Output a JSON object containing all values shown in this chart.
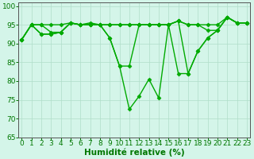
{
  "series": [
    {
      "x": [
        0,
        1,
        2,
        3,
        4,
        5,
        6,
        7,
        8,
        9,
        10,
        11,
        12,
        13,
        14,
        15,
        16,
        17,
        18,
        19,
        20,
        21,
        22,
        23
      ],
      "y": [
        91,
        95,
        95,
        95,
        95,
        95.5,
        95,
        95.5,
        95,
        95,
        95,
        95,
        95,
        95,
        95,
        95,
        96,
        95,
        95,
        95,
        95,
        97,
        95.5,
        95.5
      ]
    },
    {
      "x": [
        0,
        1,
        2,
        3,
        4,
        5,
        6,
        7,
        8,
        9,
        10,
        11,
        12,
        13,
        14,
        15,
        16,
        17,
        18,
        19,
        20,
        21,
        22,
        23
      ],
      "y": [
        91,
        95,
        95,
        93,
        93,
        95.5,
        95,
        95,
        95,
        95,
        95,
        95,
        95,
        95,
        95,
        95,
        96,
        95,
        95,
        93.5,
        93.5,
        97,
        95.5,
        95.5
      ]
    },
    {
      "x": [
        0,
        1,
        2,
        3,
        4,
        5,
        6,
        7,
        8,
        9,
        10,
        11,
        12,
        13,
        14,
        15,
        16,
        17,
        18,
        19,
        20,
        21,
        22,
        23
      ],
      "y": [
        91,
        95,
        92.5,
        92.5,
        93,
        95.5,
        95,
        95,
        95,
        91.5,
        84,
        84,
        95,
        95,
        95,
        95,
        96,
        82,
        88,
        91.5,
        93.5,
        97,
        95.5,
        95.5
      ]
    },
    {
      "x": [
        0,
        1,
        2,
        3,
        4,
        5,
        6,
        7,
        8,
        9,
        10,
        11,
        12,
        13,
        14,
        15,
        16,
        17,
        18,
        19,
        20,
        21,
        22,
        23
      ],
      "y": [
        91,
        95,
        92.5,
        92.5,
        93,
        95.5,
        95,
        95,
        95,
        91.5,
        84,
        72.5,
        76,
        80.5,
        75.5,
        95,
        82,
        82,
        88,
        91.5,
        93.5,
        97,
        95.5,
        95.5
      ]
    }
  ],
  "line_color": "#00aa00",
  "marker": "D",
  "marker_size": 2.5,
  "line_width": 1.0,
  "xlim": [
    -0.3,
    23.3
  ],
  "ylim": [
    65,
    101
  ],
  "yticks": [
    65,
    70,
    75,
    80,
    85,
    90,
    95,
    100
  ],
  "xticks": [
    0,
    1,
    2,
    3,
    4,
    5,
    6,
    7,
    8,
    9,
    10,
    11,
    12,
    13,
    14,
    15,
    16,
    17,
    18,
    19,
    20,
    21,
    22,
    23
  ],
  "xlabel": "Humidité relative (%)",
  "background_color": "#d4f5e9",
  "grid_color": "#b0ddc8",
  "axis_color": "#555555",
  "tick_label_color": "#007700",
  "xlabel_color": "#007700",
  "xlabel_fontsize": 7.5,
  "tick_fontsize": 6.5
}
